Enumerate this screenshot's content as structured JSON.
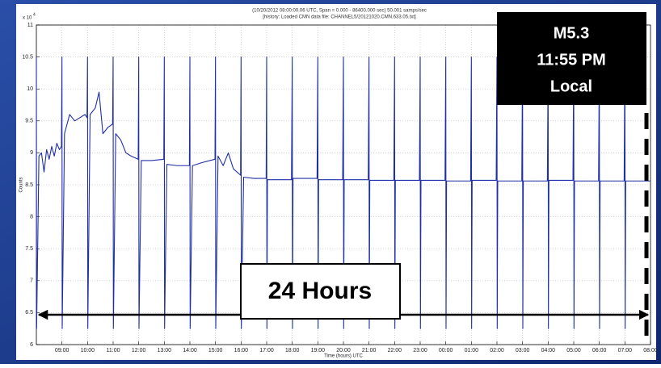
{
  "chart_data": {
    "type": "line",
    "title": "(10/20/2012 08:00:00.06 UTC, Span =  0.000 - 86400.000 sec)  50.001 samps/sec",
    "subtitle": "[history: Loaded CMN data file: CHANNEL5/20121020.CMN.633.05.txt]",
    "ylabel": "Counts",
    "xlabel": "Time (hours) UTC",
    "y_multiplier": "x 10",
    "y_multiplier_exponent": "4",
    "annotations": [
      "M5.3",
      "11:55 PM",
      "Local",
      "24 Hours"
    ],
    "grid": true,
    "xlim": [
      0,
      24
    ],
    "ylim": [
      6,
      11
    ],
    "yticks": [
      6,
      6.5,
      7,
      7.5,
      8,
      8.5,
      9,
      9.5,
      10,
      10.5,
      11
    ],
    "xticks": [
      {
        "value": 1,
        "label": "09:00"
      },
      {
        "value": 2,
        "label": "10:00"
      },
      {
        "value": 3,
        "label": "11:00"
      },
      {
        "value": 4,
        "label": "12:00"
      },
      {
        "value": 5,
        "label": "13:00"
      },
      {
        "value": 6,
        "label": "14:00"
      },
      {
        "value": 7,
        "label": "15:00"
      },
      {
        "value": 8,
        "label": "16:00"
      },
      {
        "value": 9,
        "label": "17:00"
      },
      {
        "value": 10,
        "label": "18:00"
      },
      {
        "value": 11,
        "label": "19:00"
      },
      {
        "value": 12,
        "label": "20:00"
      },
      {
        "value": 13,
        "label": "21:00"
      },
      {
        "value": 14,
        "label": "22:00"
      },
      {
        "value": 15,
        "label": "23:00"
      },
      {
        "value": 16,
        "label": "00:00"
      },
      {
        "value": 17,
        "label": "01:00"
      },
      {
        "value": 18,
        "label": "02:00"
      },
      {
        "value": 19,
        "label": "03:00"
      },
      {
        "value": 20,
        "label": "04:00"
      },
      {
        "value": 21,
        "label": "05:00"
      },
      {
        "value": 22,
        "label": "06:00"
      },
      {
        "value": 23,
        "label": "07:00"
      },
      {
        "value": 24,
        "label": "08:00"
      }
    ],
    "x": [
      0,
      0.01,
      0.1,
      0.2,
      0.3,
      0.4,
      0.5,
      0.6,
      0.7,
      0.8,
      0.9,
      0.98,
      1,
      1.01,
      1.1,
      1.3,
      1.5,
      1.7,
      1.9,
      1.98,
      2,
      2.01,
      2.1,
      2.3,
      2.45,
      2.6,
      2.8,
      2.98,
      3,
      3.01,
      3.1,
      3.3,
      3.5,
      3.7,
      3.98,
      4,
      4.01,
      4.1,
      4.5,
      4.98,
      5,
      5.01,
      5.1,
      5.5,
      5.98,
      6,
      6.01,
      6.1,
      6.5,
      6.98,
      7,
      7.01,
      7.1,
      7.3,
      7.5,
      7.7,
      7.98,
      8,
      8.01,
      8.1,
      8.5,
      8.98,
      9,
      9.01,
      9.03,
      9.97,
      10,
      10.01,
      10.03,
      10.97,
      11,
      11.01,
      11.03,
      11.97,
      12,
      12.01,
      12.03,
      12.97,
      13,
      13.01,
      13.03,
      13.97,
      14,
      14.01,
      14.03,
      14.97,
      15,
      15.01,
      15.03,
      15.97,
      16,
      16.01,
      16.03,
      16.97,
      17,
      17.01,
      17.03,
      17.97,
      18,
      18.01,
      18.03,
      18.97,
      19,
      19.01,
      19.03,
      19.97,
      20,
      20.01,
      20.03,
      20.97,
      21,
      21.01,
      21.03,
      21.97,
      22,
      22.01,
      22.03,
      22.97,
      23,
      23.01,
      23.03,
      23.97,
      24
    ],
    "series": [
      {
        "color": "#1f2fa8",
        "values": [
          10.5,
          6.25,
          8.95,
          9.0,
          8.7,
          9.05,
          8.9,
          9.1,
          8.95,
          9.15,
          9.05,
          9.1,
          10.5,
          6.25,
          9.3,
          9.6,
          9.5,
          9.55,
          9.6,
          9.55,
          10.5,
          6.25,
          9.6,
          9.7,
          9.95,
          9.3,
          9.4,
          9.45,
          10.5,
          6.25,
          9.3,
          9.2,
          9.0,
          8.95,
          8.9,
          10.5,
          6.25,
          8.88,
          8.88,
          8.9,
          10.5,
          6.25,
          8.82,
          8.8,
          8.8,
          10.5,
          6.25,
          8.8,
          8.85,
          8.9,
          10.5,
          6.25,
          8.95,
          8.8,
          9.0,
          8.75,
          8.65,
          10.5,
          6.25,
          8.62,
          8.6,
          8.6,
          10.5,
          6.25,
          8.58,
          8.58,
          10.5,
          6.25,
          8.6,
          8.6,
          10.5,
          6.25,
          8.58,
          8.58,
          10.5,
          6.25,
          8.58,
          8.58,
          10.5,
          6.25,
          8.57,
          8.57,
          10.5,
          6.25,
          8.57,
          8.57,
          10.5,
          6.25,
          8.57,
          8.57,
          10.5,
          6.25,
          8.56,
          8.56,
          10.5,
          6.25,
          8.57,
          8.57,
          10.5,
          6.25,
          8.56,
          8.56,
          10.5,
          6.25,
          8.56,
          8.56,
          10.5,
          6.25,
          8.57,
          8.57,
          10.5,
          6.25,
          8.56,
          8.56,
          10.5,
          6.25,
          8.56,
          8.56,
          10.5,
          6.25,
          8.56,
          8.56,
          8.56
        ]
      }
    ]
  }
}
